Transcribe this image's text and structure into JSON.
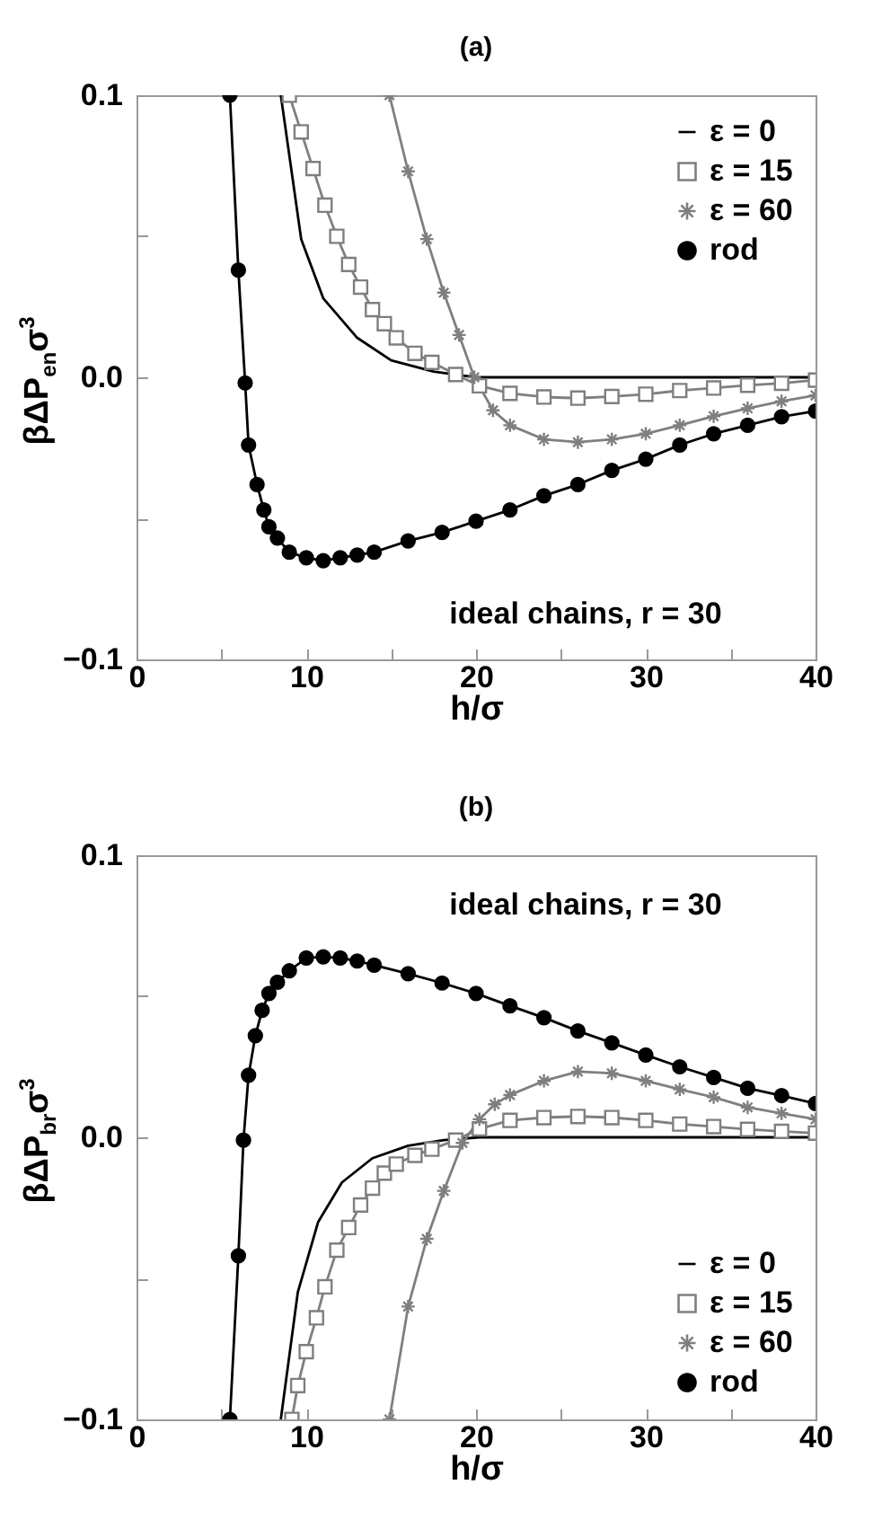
{
  "chart_data": [
    {
      "type": "line",
      "title": "(a)",
      "xlabel": "h/σ",
      "ylabel": "βΔP$_{en}$σ$^{3}$",
      "xlim": [
        0,
        40
      ],
      "ylim": [
        -0.1,
        0.1
      ],
      "xticks": [
        0,
        {
          "value": 5,
          "label": null
        },
        10,
        {
          "value": 15,
          "label": null
        },
        20,
        {
          "value": 25,
          "label": null
        },
        30,
        {
          "value": 35,
          "label": null
        },
        40
      ],
      "yticks": [
        {
          "value": -0.1,
          "label": "−0.1"
        },
        {
          "value": -0.05,
          "label": null
        },
        {
          "value": 0,
          "label": "0.0"
        },
        {
          "value": 0.05,
          "label": null
        },
        0.1
      ],
      "legend": "top right",
      "annotations": [
        "ideal chains, r = 30"
      ],
      "series": [
        {
          "name": "ε = 0",
          "color": "#000000",
          "marker": "none",
          "x": [
            8.5,
            9.7,
            11,
            13,
            15,
            17.5,
            20,
            25,
            30,
            35,
            40
          ],
          "values": [
            0.1,
            0.049,
            0.028,
            0.014,
            0.006,
            0.002,
            0,
            0,
            0,
            0,
            0
          ]
        },
        {
          "name": "ε = 15",
          "color": "#7f7f7f",
          "marker": "square",
          "x": [
            9,
            9.7,
            10.4,
            11.1,
            11.8,
            12.5,
            13.2,
            13.9,
            14.6,
            15.3,
            16.4,
            17.4,
            18.8,
            20.2,
            22,
            24,
            26,
            28,
            30,
            32,
            34,
            36,
            38,
            40
          ],
          "values": [
            0.1,
            0.087,
            0.074,
            0.061,
            0.05,
            0.04,
            0.032,
            0.024,
            0.019,
            0.014,
            0.0085,
            0.0053,
            0.001,
            -0.003,
            -0.0057,
            -0.007,
            -0.0074,
            -0.0068,
            -0.006,
            -0.0047,
            -0.0038,
            -0.0028,
            -0.0021,
            -0.001
          ]
        },
        {
          "name": "ε = 60",
          "color": "#7f7f7f",
          "marker": "cross",
          "x": [
            14.9,
            16,
            17.1,
            18.1,
            19,
            19.9,
            21,
            22,
            24,
            26,
            28,
            30,
            32,
            34,
            36,
            38,
            40
          ],
          "values": [
            0.1,
            0.073,
            0.049,
            0.03,
            0.015,
            0,
            -0.0117,
            -0.017,
            -0.022,
            -0.023,
            -0.022,
            -0.02,
            -0.017,
            -0.0138,
            -0.011,
            -0.0085,
            -0.0064
          ]
        },
        {
          "name": "rod",
          "color": "#000000",
          "marker": "circle",
          "x": [
            5.5,
            6,
            6.4,
            6.6,
            7.1,
            7.5,
            7.8,
            8.3,
            9,
            10,
            11,
            12,
            13,
            14,
            16,
            18,
            20,
            22,
            24,
            26,
            28,
            30,
            32,
            34,
            36,
            38,
            40
          ],
          "values": [
            0.1,
            0.038,
            -0.002,
            -0.024,
            -0.038,
            -0.047,
            -0.053,
            -0.057,
            -0.062,
            -0.064,
            -0.065,
            -0.064,
            -0.063,
            -0.062,
            -0.058,
            -0.055,
            -0.051,
            -0.047,
            -0.042,
            -0.038,
            -0.033,
            -0.029,
            -0.024,
            -0.02,
            -0.017,
            -0.014,
            -0.012
          ]
        }
      ]
    },
    {
      "type": "line",
      "title": "(b)",
      "xlabel": "h/σ",
      "ylabel": "βΔP$_{br}$σ$^{3}$",
      "xlim": [
        0,
        40
      ],
      "ylim": [
        -0.1,
        0.1
      ],
      "xticks": [
        0,
        {
          "value": 5,
          "label": null
        },
        10,
        {
          "value": 15,
          "label": null
        },
        20,
        {
          "value": 25,
          "label": null
        },
        30,
        {
          "value": 35,
          "label": null
        },
        40
      ],
      "yticks": [
        {
          "value": -0.1,
          "label": "−0.1"
        },
        {
          "value": -0.05,
          "label": null
        },
        {
          "value": 0,
          "label": "0.0"
        },
        {
          "value": 0.05,
          "label": null
        },
        0.1
      ],
      "legend": "bottom right",
      "annotations": [
        "ideal chains, r = 30"
      ],
      "series": [
        {
          "name": "ε = 0",
          "color": "#000000",
          "marker": "none",
          "x": [
            8.5,
            9.5,
            10.7,
            12.1,
            13.9,
            16,
            18.1,
            20.2,
            25,
            30,
            35,
            40
          ],
          "values": [
            -0.1,
            -0.055,
            -0.03,
            -0.016,
            -0.0074,
            -0.003,
            -0.001,
            0,
            0,
            0,
            0,
            0
          ]
        },
        {
          "name": "ε = 15",
          "color": "#7f7f7f",
          "marker": "square",
          "x": [
            9.15,
            9.5,
            10,
            10.6,
            11.1,
            11.8,
            12.5,
            13.2,
            13.9,
            14.6,
            15.3,
            16.4,
            17.4,
            18.8,
            20.2,
            22,
            24,
            26,
            28,
            30,
            32,
            34,
            36,
            38,
            40
          ],
          "values": [
            -0.1,
            -0.088,
            -0.076,
            -0.064,
            -0.053,
            -0.04,
            -0.032,
            -0.024,
            -0.018,
            -0.0127,
            -0.0095,
            -0.0064,
            -0.0042,
            -0.001,
            0.003,
            0.006,
            0.007,
            0.0074,
            0.007,
            0.006,
            0.0047,
            0.0038,
            0.0028,
            0.0021,
            0.0015
          ]
        },
        {
          "name": "ε = 60",
          "color": "#7f7f7f",
          "marker": "cross",
          "x": [
            14.9,
            16,
            17.1,
            18.1,
            19.2,
            20.2,
            21.1,
            22,
            24,
            26,
            28,
            30,
            32,
            34,
            36,
            38,
            40
          ],
          "values": [
            -0.1,
            -0.06,
            -0.036,
            -0.019,
            -0.002,
            0.0064,
            0.0117,
            0.015,
            0.02,
            0.0233,
            0.0227,
            0.02,
            0.017,
            0.0142,
            0.0106,
            0.0085,
            0.0064
          ]
        },
        {
          "name": "rod",
          "color": "#000000",
          "marker": "circle",
          "x": [
            5.5,
            6,
            6.3,
            6.6,
            7,
            7.4,
            7.8,
            8.3,
            9,
            10,
            11,
            12,
            13,
            14,
            16,
            18,
            20,
            22,
            24,
            26,
            28,
            30,
            32,
            34,
            36,
            38,
            40
          ],
          "values": [
            -0.1,
            -0.042,
            -0.001,
            0.022,
            0.036,
            0.045,
            0.051,
            0.055,
            0.059,
            0.0636,
            0.064,
            0.0636,
            0.0625,
            0.061,
            0.058,
            0.0547,
            0.051,
            0.0466,
            0.0424,
            0.0377,
            0.0335,
            0.0292,
            0.025,
            0.0212,
            0.0174,
            0.0148,
            0.012
          ]
        }
      ]
    }
  ]
}
